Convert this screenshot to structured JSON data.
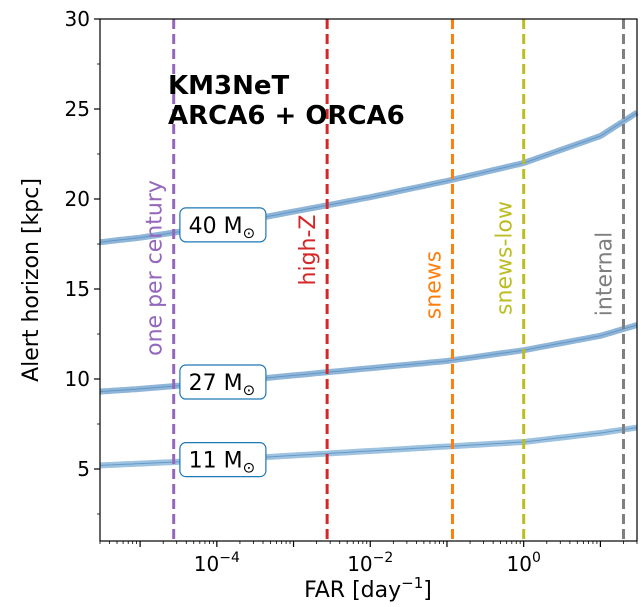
{
  "chart_data": {
    "type": "line",
    "title": "KM3NeT",
    "subtitle": "ARCA6 + ORCA6",
    "xlabel": "FAR [day",
    "xlabel_exp": "−1",
    "xlabel_close": "]",
    "ylabel": "Alert horizon [kpc]",
    "xscale": "log",
    "xlim": [
      3e-06,
      30
    ],
    "ylim": [
      1,
      30
    ],
    "x_ticks": [
      {
        "value": 0.0001,
        "base": "10",
        "exp": "−4"
      },
      {
        "value": 0.01,
        "base": "10",
        "exp": "−2"
      },
      {
        "value": 1,
        "base": "10",
        "exp": "0"
      }
    ],
    "y_ticks": [
      5,
      10,
      15,
      20,
      25,
      30
    ],
    "series": [
      {
        "label_text": "40 M",
        "label_sub": "⊙",
        "color": "#8fb6d9",
        "x": [
          3e-06,
          1e-05,
          0.0001,
          0.001,
          0.01,
          0.1,
          1,
          10,
          30
        ],
        "y": [
          17.6,
          17.85,
          18.5,
          19.3,
          20.1,
          21.0,
          22.0,
          23.5,
          24.8
        ]
      },
      {
        "label_text": "27 M",
        "label_sub": "⊙",
        "color": "#8fb6d9",
        "x": [
          3e-06,
          1e-05,
          0.0001,
          0.001,
          0.01,
          0.1,
          1,
          10,
          30
        ],
        "y": [
          9.3,
          9.45,
          9.8,
          10.2,
          10.6,
          11.0,
          11.6,
          12.4,
          13.0
        ]
      },
      {
        "label_text": "11 M",
        "label_sub": "⊙",
        "color": "#9ec3e0",
        "x": [
          3e-06,
          1e-05,
          0.0001,
          0.001,
          0.01,
          0.1,
          1,
          10,
          30
        ],
        "y": [
          5.2,
          5.3,
          5.5,
          5.75,
          6.0,
          6.25,
          6.5,
          7.0,
          7.3
        ]
      }
    ],
    "thresholds": [
      {
        "label": "one per century",
        "x": 2.74e-05,
        "color": "#9467bd"
      },
      {
        "label": "high-Z",
        "x": 0.00274,
        "color": "#d62728"
      },
      {
        "label": "snews",
        "x": 0.118,
        "color": "#ff7f0e"
      },
      {
        "label": "snews-low",
        "x": 1.0,
        "color": "#bcbd22"
      },
      {
        "label": "internal",
        "x": 20.0,
        "color": "#7f7f7f"
      }
    ],
    "grid": false
  }
}
